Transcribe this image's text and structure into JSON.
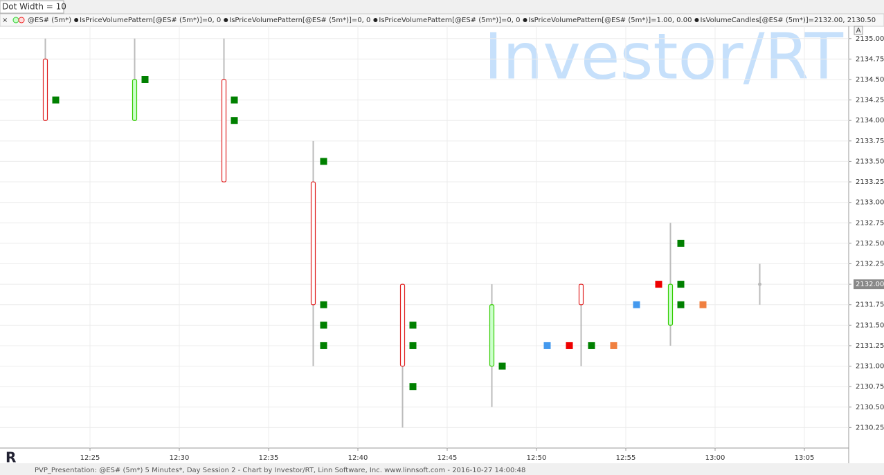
{
  "toolbar": {
    "dot_width": "Dot Width = 10",
    "button": "A"
  },
  "legend_bar": [
    "@ES# (5m*)",
    "IsPriceVolumePattern[@ES# (5m*)]=0, 0",
    "IsPriceVolumePattern[@ES# (5m*)]=0, 0",
    "IsPriceVolumePattern[@ES# (5m*)]=0, 0",
    "IsPriceVolumePattern[@ES# (5m*)]=1.00, 0.00",
    "IsVolumeCandles[@ES# (5m*)]=2132.00, 2130.50"
  ],
  "watermark": "Investor/RT",
  "footer": "PVP_Presentation: @ES# (5m*) 5 Minutes*, Day Session 2 - Chart by Investor/RT, Linn Software, Inc. www.linnsoft.com - 2016-10-27 14:00:48",
  "chart_data": {
    "type": "candlestick",
    "grid": true,
    "up_color": "#33cc00",
    "up_fill": "#ccffcc",
    "down_color": "#e02020",
    "down_fill": "#ffffff",
    "wick_color": "#bbbbbb",
    "open": [
      2134.75,
      2134.0,
      2134.5,
      2133.25,
      2132.0,
      2131.0,
      2132.0,
      2131.5,
      2132.0
    ],
    "high": [
      2135.0,
      2135.0,
      2135.0,
      2133.75,
      2132.0,
      2132.0,
      2132.0,
      2132.75,
      2132.25
    ],
    "low": [
      2134.0,
      2134.0,
      2133.25,
      2131.0,
      2130.25,
      2130.5,
      2131.0,
      2131.25,
      2131.75
    ],
    "close": [
      2134.0,
      2134.5,
      2133.25,
      2131.75,
      2131.0,
      2131.75,
      2131.75,
      2132.0,
      2132.0
    ],
    "xtick_labels": [
      "12:25",
      "12:30",
      "12:35",
      "12:40",
      "12:45",
      "12:50",
      "12:55",
      "13:00",
      "13:05"
    ],
    "dot_series": [
      {
        "color": "#008000",
        "values": [
          [
            2134.25
          ],
          [
            2134.5
          ],
          [
            2134.25,
            2134.0
          ],
          [
            2133.5,
            2131.75,
            2131.5,
            2131.25
          ],
          [
            2131.5,
            2131.25,
            2130.75
          ],
          [
            2131.0
          ],
          [
            2131.25
          ],
          [
            2132.5,
            2132.0,
            2131.75
          ],
          []
        ]
      },
      {
        "color": "#4499ee",
        "values": [
          [],
          [],
          [],
          [],
          [],
          [],
          [
            2131.25
          ],
          [
            2131.75
          ],
          []
        ]
      },
      {
        "color": "#ee0000",
        "values": [
          [],
          [],
          [],
          [],
          [],
          [],
          [
            2131.25
          ],
          [
            2132.0
          ],
          []
        ]
      },
      {
        "color": "#f08040",
        "values": [
          [],
          [],
          [],
          [],
          [],
          [],
          [
            2131.25
          ],
          [
            2131.75
          ],
          []
        ]
      }
    ],
    "last_price": {
      "value": 2132,
      "label": "2132.00"
    },
    "ylim": [
      2130.0,
      2135.15
    ],
    "yticks": [
      {
        "value": 2130.25,
        "label": "2130.25"
      },
      {
        "value": 2130.5,
        "label": "2130.50"
      },
      {
        "value": 2130.75,
        "label": "2130.75"
      },
      {
        "value": 2131,
        "label": "2131.00"
      },
      {
        "value": 2131.25,
        "label": "2131.25"
      },
      {
        "value": 2131.5,
        "label": "2131.50"
      },
      {
        "value": 2131.75,
        "label": "2131.75"
      },
      {
        "value": 2132,
        "label": "2132.00"
      },
      {
        "value": 2132.25,
        "label": "2132.25"
      },
      {
        "value": 2132.5,
        "label": "2132.50"
      },
      {
        "value": 2132.75,
        "label": "2132.75"
      },
      {
        "value": 2133,
        "label": "2133.00"
      },
      {
        "value": 2133.25,
        "label": "2133.25"
      },
      {
        "value": 2133.5,
        "label": "2133.50"
      },
      {
        "value": 2133.75,
        "label": "2133.75"
      },
      {
        "value": 2134,
        "label": "2134.00"
      },
      {
        "value": 2134.25,
        "label": "2134.25"
      },
      {
        "value": 2134.5,
        "label": "2134.50"
      },
      {
        "value": 2134.75,
        "label": "2134.75"
      },
      {
        "value": 2135,
        "label": "2135.00"
      }
    ]
  }
}
